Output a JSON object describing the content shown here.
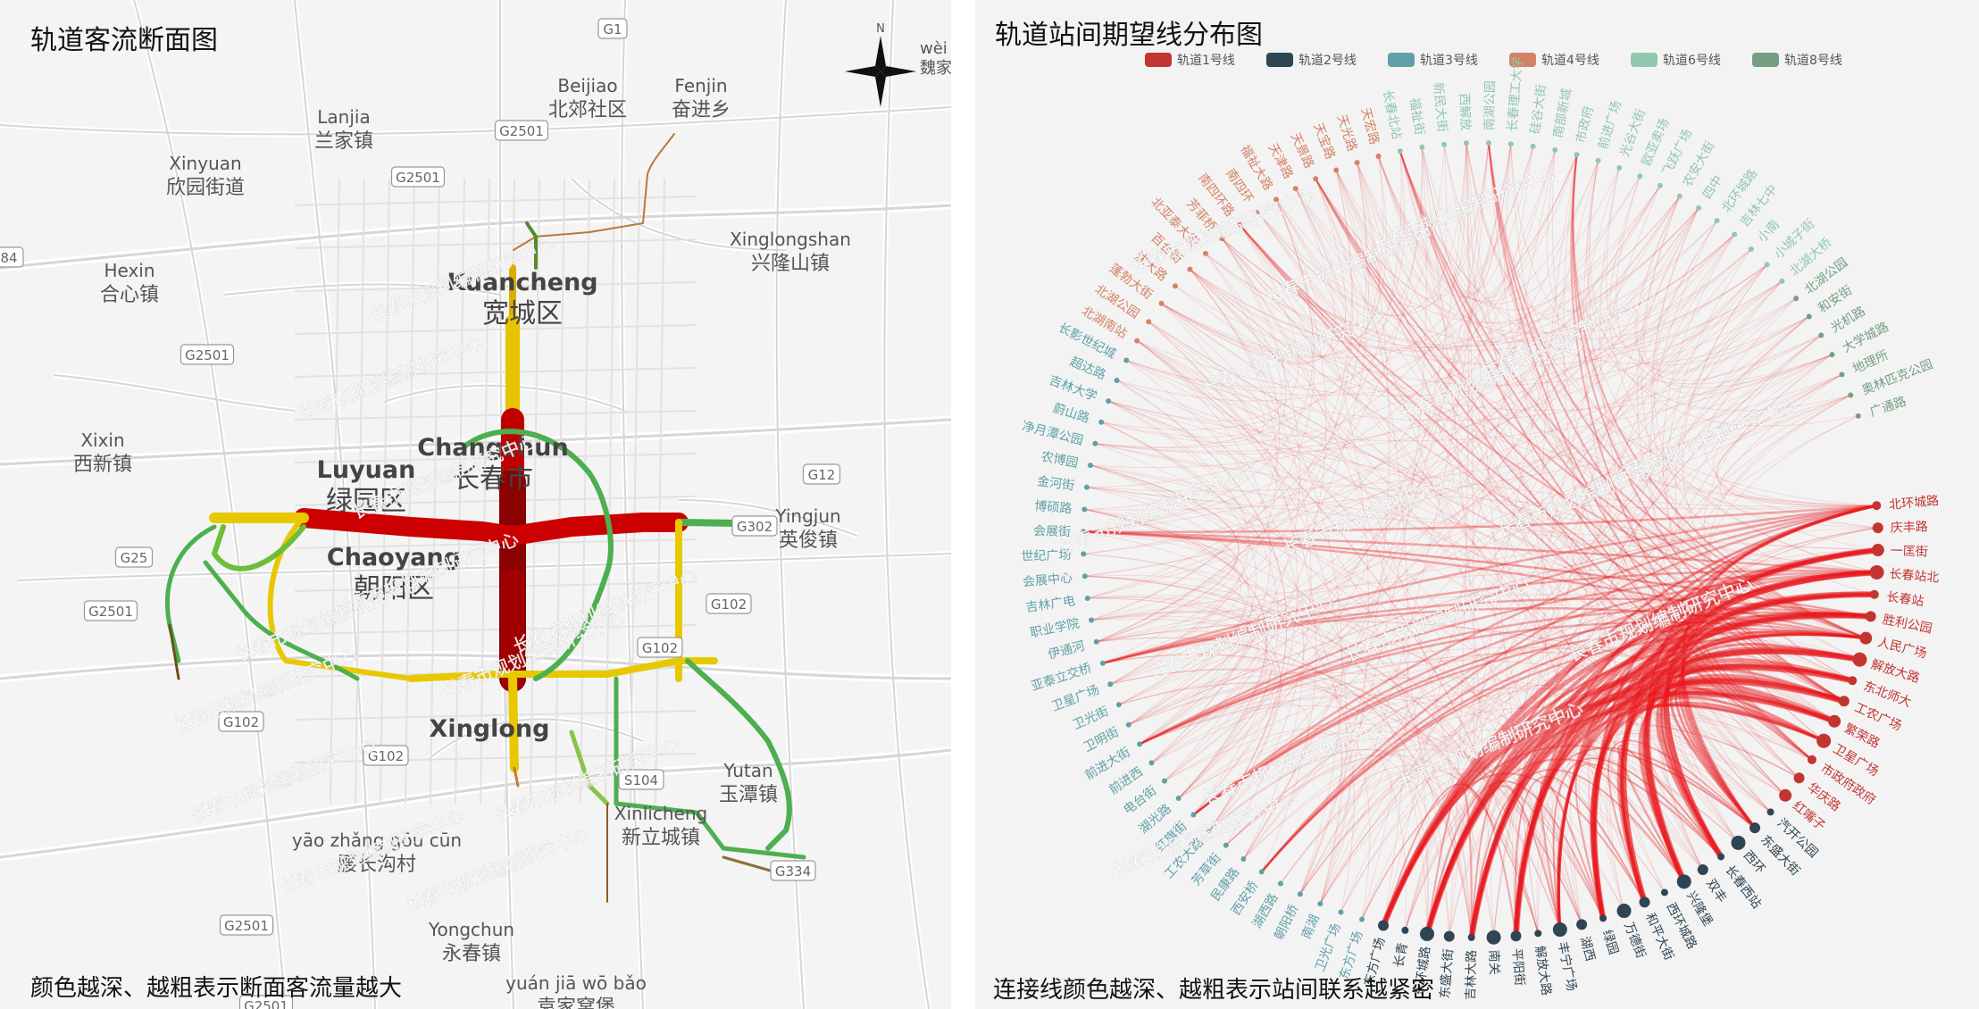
{
  "left_panel": {
    "title": "轨道客流断面图",
    "note": "颜色越深、越粗表示断面客流量越大",
    "compass": {
      "letter": "N",
      "corner_text": [
        "wèi jiā",
        "魏家"
      ]
    },
    "places": [
      {
        "en": "Beijiao",
        "zh": "北郊社区"
      },
      {
        "en": "Fenjin",
        "zh": "奋进乡"
      },
      {
        "en": "Lanjia",
        "zh": "兰家镇"
      },
      {
        "en": "Xinyuan",
        "zh": "欣园街道"
      },
      {
        "en": "Hexin",
        "zh": "合心镇"
      },
      {
        "en": "Xinglongshan",
        "zh": "兴隆山镇"
      },
      {
        "en": "Xixin",
        "zh": "西新镇"
      },
      {
        "en": "Yingjun",
        "zh": "英俊镇"
      },
      {
        "en": "yāo zhǎng gōu cūn",
        "zh": "腰长沟村"
      },
      {
        "en": "Yongchun",
        "zh": "永春镇"
      },
      {
        "en": "yuán jiā wō bǎo",
        "zh": "袁家窝堡"
      },
      {
        "en": "Xinlicheng",
        "zh": "新立城镇"
      },
      {
        "en": "Yutan",
        "zh": "玉潭镇"
      }
    ],
    "districts": [
      {
        "en": "Kuancheng",
        "zh": "宽城区"
      },
      {
        "en": "Changchun",
        "zh": "长春市"
      },
      {
        "en": "Luyuan",
        "zh": "绿园区"
      },
      {
        "en": "Chaoyang",
        "zh": "朝阳区"
      },
      {
        "en": "Xinglong",
        "zh": ""
      }
    ],
    "road_labels": [
      "G1",
      "G2501",
      "G2501",
      "G2501",
      "G2501",
      "G2501",
      "G2501",
      "G25",
      "G102",
      "G102",
      "G102",
      "G102",
      "G12",
      "G302",
      "S104",
      "G334",
      "84"
    ],
    "watermark": "长春市规划编制研究中心"
  },
  "right_panel": {
    "title": "轨道站间期望线分布图",
    "note": "连接线颜色越深、越粗表示站间联系越紧密",
    "legend": [
      {
        "label": "轨道1号线",
        "color": "#c23531"
      },
      {
        "label": "轨道2号线",
        "color": "#2f4554"
      },
      {
        "label": "轨道3号线",
        "color": "#61a0a8"
      },
      {
        "label": "轨道4号线",
        "color": "#d48265"
      },
      {
        "label": "轨道6号线",
        "color": "#91c7ae"
      },
      {
        "label": "轨道8号线",
        "color": "#749f83"
      }
    ],
    "watermark": "长春市规划编制研究中心",
    "stations": [
      {
        "name": "北环城路",
        "line": 1
      },
      {
        "name": "庆丰路",
        "line": 1
      },
      {
        "name": "一匡街",
        "line": 1
      },
      {
        "name": "长春站北",
        "line": 1
      },
      {
        "name": "长春站",
        "line": 1
      },
      {
        "name": "胜利公园",
        "line": 1
      },
      {
        "name": "人民广场",
        "line": 1
      },
      {
        "name": "解放大路",
        "line": 1
      },
      {
        "name": "东北师大",
        "line": 1
      },
      {
        "name": "工农广场",
        "line": 1
      },
      {
        "name": "繁荣路",
        "line": 1
      },
      {
        "name": "卫星广场",
        "line": 1
      },
      {
        "name": "市政府政府",
        "line": 1
      },
      {
        "name": "华庆路",
        "line": 1
      },
      {
        "name": "红嘴子",
        "line": 1
      },
      {
        "name": "汽开公园",
        "line": 2
      },
      {
        "name": "东盛大街",
        "line": 2
      },
      {
        "name": "西环",
        "line": 2
      },
      {
        "name": "长春西站",
        "line": 2
      },
      {
        "name": "双丰",
        "line": 2
      },
      {
        "name": "兴隆堡",
        "line": 2
      },
      {
        "name": "西环城路",
        "line": 2
      },
      {
        "name": "和平大街",
        "line": 2
      },
      {
        "name": "万德街",
        "line": 2
      },
      {
        "name": "绿园",
        "line": 2
      },
      {
        "name": "湖西",
        "line": 2
      },
      {
        "name": "丰宁广场",
        "line": 2
      },
      {
        "name": "解放大路",
        "line": 2
      },
      {
        "name": "平阳街",
        "line": 2
      },
      {
        "name": "南关",
        "line": 2
      },
      {
        "name": "吉林大路",
        "line": 2
      },
      {
        "name": "东盛大街",
        "line": 2
      },
      {
        "name": "东环城路",
        "line": 2
      },
      {
        "name": "长青",
        "line": 2
      },
      {
        "name": "东方广场",
        "line": 2
      },
      {
        "name": "东方广场",
        "line": 3
      },
      {
        "name": "卫光广场",
        "line": 3
      },
      {
        "name": "南湖",
        "line": 3
      },
      {
        "name": "朝阳桥",
        "line": 3
      },
      {
        "name": "湖西路",
        "line": 3
      },
      {
        "name": "西安桥",
        "line": 3
      },
      {
        "name": "民康路",
        "line": 3
      },
      {
        "name": "芳草街",
        "line": 3
      },
      {
        "name": "工农大路",
        "line": 3
      },
      {
        "name": "红旗街",
        "line": 3
      },
      {
        "name": "湖光路",
        "line": 3
      },
      {
        "name": "电台街",
        "line": 3
      },
      {
        "name": "前进西",
        "line": 3
      },
      {
        "name": "前进大街",
        "line": 3
      },
      {
        "name": "卫明街",
        "line": 3
      },
      {
        "name": "卫光街",
        "line": 3
      },
      {
        "name": "卫星广场",
        "line": 3
      },
      {
        "name": "亚泰立交桥",
        "line": 3
      },
      {
        "name": "伊通河",
        "line": 3
      },
      {
        "name": "职业学院",
        "line": 3
      },
      {
        "name": "吉林广电",
        "line": 3
      },
      {
        "name": "会展中心",
        "line": 3
      },
      {
        "name": "世纪广场",
        "line": 3
      },
      {
        "name": "会展街",
        "line": 3
      },
      {
        "name": "博硕路",
        "line": 3
      },
      {
        "name": "金河街",
        "line": 3
      },
      {
        "name": "农博园",
        "line": 3
      },
      {
        "name": "净月潭公园",
        "line": 3
      },
      {
        "name": "蔚山路",
        "line": 3
      },
      {
        "name": "吉林大学",
        "line": 3
      },
      {
        "name": "超达路",
        "line": 3
      },
      {
        "name": "长影世纪城",
        "line": 3
      },
      {
        "name": "北湖南站",
        "line": 4
      },
      {
        "name": "北湖公园",
        "line": 4
      },
      {
        "name": "蓬勃大街",
        "line": 4
      },
      {
        "name": "沈大路",
        "line": 4
      },
      {
        "name": "百合街",
        "line": 4
      },
      {
        "name": "北亚泰大街",
        "line": 4
      },
      {
        "name": "芳菲桥",
        "line": 4
      },
      {
        "name": "南四环路",
        "line": 4
      },
      {
        "name": "南四环",
        "line": 4
      },
      {
        "name": "福祉大路",
        "line": 4
      },
      {
        "name": "天津路",
        "line": 4
      },
      {
        "name": "天景路",
        "line": 4
      },
      {
        "name": "天宝路",
        "line": 4
      },
      {
        "name": "天光路",
        "line": 4
      },
      {
        "name": "天宏路",
        "line": 4
      },
      {
        "name": "长春北站",
        "line": 6
      },
      {
        "name": "福祉街",
        "line": 6
      },
      {
        "name": "新民大街",
        "line": 6
      },
      {
        "name": "西解放",
        "line": 6
      },
      {
        "name": "南湖公园",
        "line": 6
      },
      {
        "name": "长春理工大学",
        "line": 6
      },
      {
        "name": "硅谷大街",
        "line": 6
      },
      {
        "name": "南部新城",
        "line": 6
      },
      {
        "name": "市政府",
        "line": 6
      },
      {
        "name": "前进广场",
        "line": 6
      },
      {
        "name": "光谷大街",
        "line": 6
      },
      {
        "name": "欧亚卖场",
        "line": 6
      },
      {
        "name": "飞跃广场",
        "line": 6
      },
      {
        "name": "农安大街",
        "line": 6
      },
      {
        "name": "四中",
        "line": 6
      },
      {
        "name": "北环城路",
        "line": 6
      },
      {
        "name": "吉林七中",
        "line": 6
      },
      {
        "name": "小南",
        "line": 6
      },
      {
        "name": "小城子街",
        "line": 6
      },
      {
        "name": "北湖大桥",
        "line": 6
      },
      {
        "name": "北湖公园",
        "line": 8
      },
      {
        "name": "和安街",
        "line": 8
      },
      {
        "name": "光机路",
        "line": 8
      },
      {
        "name": "大学城路",
        "line": 8
      },
      {
        "name": "地理所",
        "line": 8
      },
      {
        "name": "奥林匹克公园",
        "line": 8
      },
      {
        "name": "广通路",
        "line": 8
      }
    ]
  }
}
